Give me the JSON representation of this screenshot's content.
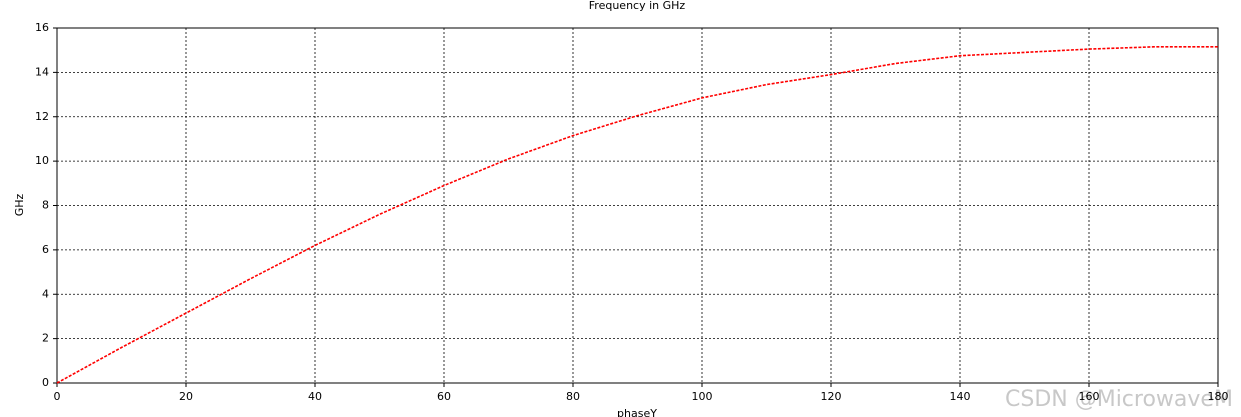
{
  "chart_data": {
    "type": "line",
    "title": "Frequency in GHz",
    "x_label": "phaseY",
    "y_label": "GHz",
    "x": [
      0,
      10,
      20,
      30,
      40,
      50,
      60,
      70,
      80,
      90,
      100,
      110,
      120,
      130,
      140,
      150,
      160,
      170,
      180
    ],
    "series": [
      {
        "name": "Frequency",
        "color": "#ff0000",
        "values": [
          0,
          1.6,
          3.15,
          4.7,
          6.2,
          7.6,
          8.9,
          10.1,
          11.15,
          12.05,
          12.85,
          13.45,
          13.9,
          14.4,
          14.75,
          14.9,
          15.05,
          15.15,
          15.15
        ]
      }
    ],
    "xlim": [
      0,
      180
    ],
    "xticks": [
      0,
      20,
      40,
      60,
      80,
      100,
      120,
      140,
      160,
      180
    ],
    "ylim": [
      0,
      16
    ],
    "yticks": [
      0,
      2,
      4,
      6,
      8,
      10,
      12,
      14,
      16
    ],
    "grid": true,
    "watermark": "CSDN @MicrowaveM"
  }
}
